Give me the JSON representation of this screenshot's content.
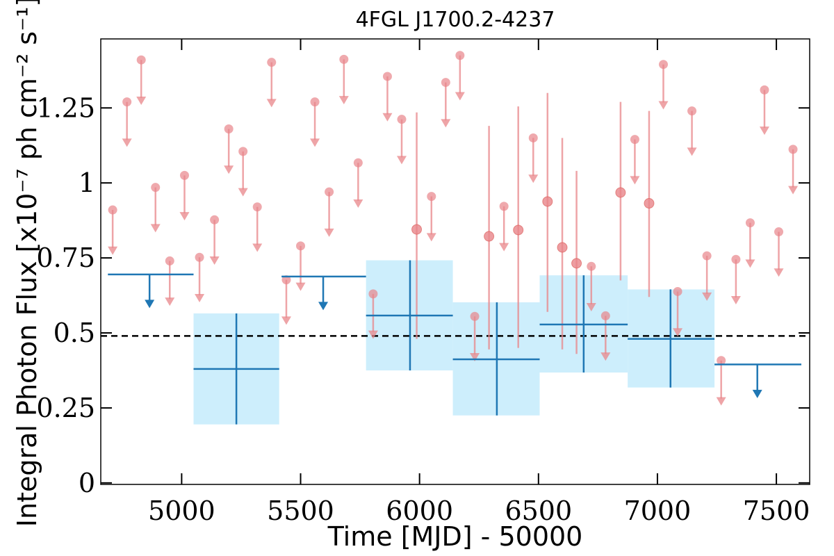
{
  "chart_data": {
    "type": "scatter",
    "title": "4FGL J1700.2-4237",
    "xlabel": "Time [MJD] - 50000",
    "ylabel": "Integral Photon Flux [x10⁻⁷ ph cm⁻² s⁻¹]",
    "xlim": [
      4660,
      7640
    ],
    "ylim": [
      -0.005,
      1.48
    ],
    "xticks": [
      5000,
      5500,
      6000,
      6500,
      7000,
      7500
    ],
    "xtick_labels": [
      "5000",
      "5500",
      "6000",
      "6500",
      "7000",
      "7500"
    ],
    "yticks": [
      0,
      0.25,
      0.5,
      0.75,
      1,
      1.25
    ],
    "ytick_labels": [
      "0",
      "0.25",
      "0.5",
      "0.75",
      "1",
      "1.25"
    ],
    "legend": "none",
    "colors": {
      "short_bin": "#e8858a",
      "long_bin": "#1f77b4",
      "band": "#cdeefc",
      "average_line": "#000000"
    },
    "average_flux": 0.49,
    "series": [
      {
        "kind": "short-bin-upper-limits",
        "points": [
          {
            "x": 4710,
            "y": 0.91
          },
          {
            "x": 4770,
            "y": 1.27
          },
          {
            "x": 4830,
            "y": 1.41
          },
          {
            "x": 4890,
            "y": 0.985
          },
          {
            "x": 4950,
            "y": 0.74
          },
          {
            "x": 5012,
            "y": 1.025
          },
          {
            "x": 5075,
            "y": 0.752
          },
          {
            "x": 5138,
            "y": 0.877
          },
          {
            "x": 5198,
            "y": 1.18
          },
          {
            "x": 5258,
            "y": 1.105
          },
          {
            "x": 5318,
            "y": 0.92
          },
          {
            "x": 5378,
            "y": 1.402
          },
          {
            "x": 5440,
            "y": 0.677
          },
          {
            "x": 5500,
            "y": 0.79
          },
          {
            "x": 5560,
            "y": 1.27
          },
          {
            "x": 5620,
            "y": 0.97
          },
          {
            "x": 5682,
            "y": 1.412
          },
          {
            "x": 5742,
            "y": 1.067
          },
          {
            "x": 5805,
            "y": 0.63
          },
          {
            "x": 5865,
            "y": 1.355
          },
          {
            "x": 5925,
            "y": 1.212
          },
          {
            "x": 6050,
            "y": 0.955
          },
          {
            "x": 6110,
            "y": 1.335
          },
          {
            "x": 6170,
            "y": 1.425
          },
          {
            "x": 6232,
            "y": 0.555
          },
          {
            "x": 6355,
            "y": 0.922
          },
          {
            "x": 6478,
            "y": 1.15
          },
          {
            "x": 6722,
            "y": 0.722
          },
          {
            "x": 6782,
            "y": 0.557
          },
          {
            "x": 6905,
            "y": 1.145
          },
          {
            "x": 7025,
            "y": 1.395
          },
          {
            "x": 7085,
            "y": 0.638
          },
          {
            "x": 7145,
            "y": 1.24
          },
          {
            "x": 7208,
            "y": 0.757
          },
          {
            "x": 7268,
            "y": 0.408
          },
          {
            "x": 7330,
            "y": 0.745
          },
          {
            "x": 7390,
            "y": 0.867
          },
          {
            "x": 7450,
            "y": 1.31
          },
          {
            "x": 7510,
            "y": 0.837
          },
          {
            "x": 7570,
            "y": 1.112
          }
        ]
      },
      {
        "kind": "short-bin-detections",
        "points": [
          {
            "x": 5988,
            "y": 0.845,
            "y_low": 0.48,
            "y_high": 1.235
          },
          {
            "x": 6292,
            "y": 0.822,
            "y_low": 0.445,
            "y_high": 1.19
          },
          {
            "x": 6415,
            "y": 0.843,
            "y_low": 0.45,
            "y_high": 1.255
          },
          {
            "x": 6538,
            "y": 0.938,
            "y_low": 0.57,
            "y_high": 1.3
          },
          {
            "x": 6600,
            "y": 0.785,
            "y_low": 0.445,
            "y_high": 1.15
          },
          {
            "x": 6660,
            "y": 0.732,
            "y_low": 0.43,
            "y_high": 1.04
          },
          {
            "x": 6845,
            "y": 0.968,
            "y_low": 0.675,
            "y_high": 1.27
          },
          {
            "x": 6965,
            "y": 0.932,
            "y_low": 0.62,
            "y_high": 1.24
          }
        ]
      },
      {
        "kind": "long-bin-detections",
        "points": [
          {
            "x": 5230,
            "x_low": 5050,
            "x_high": 5410,
            "y": 0.38,
            "y_low": 0.195,
            "y_high": 0.565
          },
          {
            "x": 5960,
            "x_low": 5775,
            "x_high": 6140,
            "y": 0.558,
            "y_low": 0.375,
            "y_high": 0.742
          },
          {
            "x": 6325,
            "x_low": 6140,
            "x_high": 6505,
            "y": 0.412,
            "y_low": 0.225,
            "y_high": 0.602
          },
          {
            "x": 6690,
            "x_low": 6505,
            "x_high": 6875,
            "y": 0.528,
            "y_low": 0.368,
            "y_high": 0.692
          },
          {
            "x": 7055,
            "x_low": 6875,
            "x_high": 7240,
            "y": 0.48,
            "y_low": 0.318,
            "y_high": 0.645
          }
        ]
      },
      {
        "kind": "long-bin-upper-limits",
        "points": [
          {
            "x": 4865,
            "x_low": 4690,
            "x_high": 5050,
            "y": 0.695
          },
          {
            "x": 5595,
            "x_low": 5420,
            "x_high": 5775,
            "y": 0.688
          },
          {
            "x": 7420,
            "x_low": 7240,
            "x_high": 7605,
            "y": 0.395
          }
        ]
      }
    ]
  }
}
